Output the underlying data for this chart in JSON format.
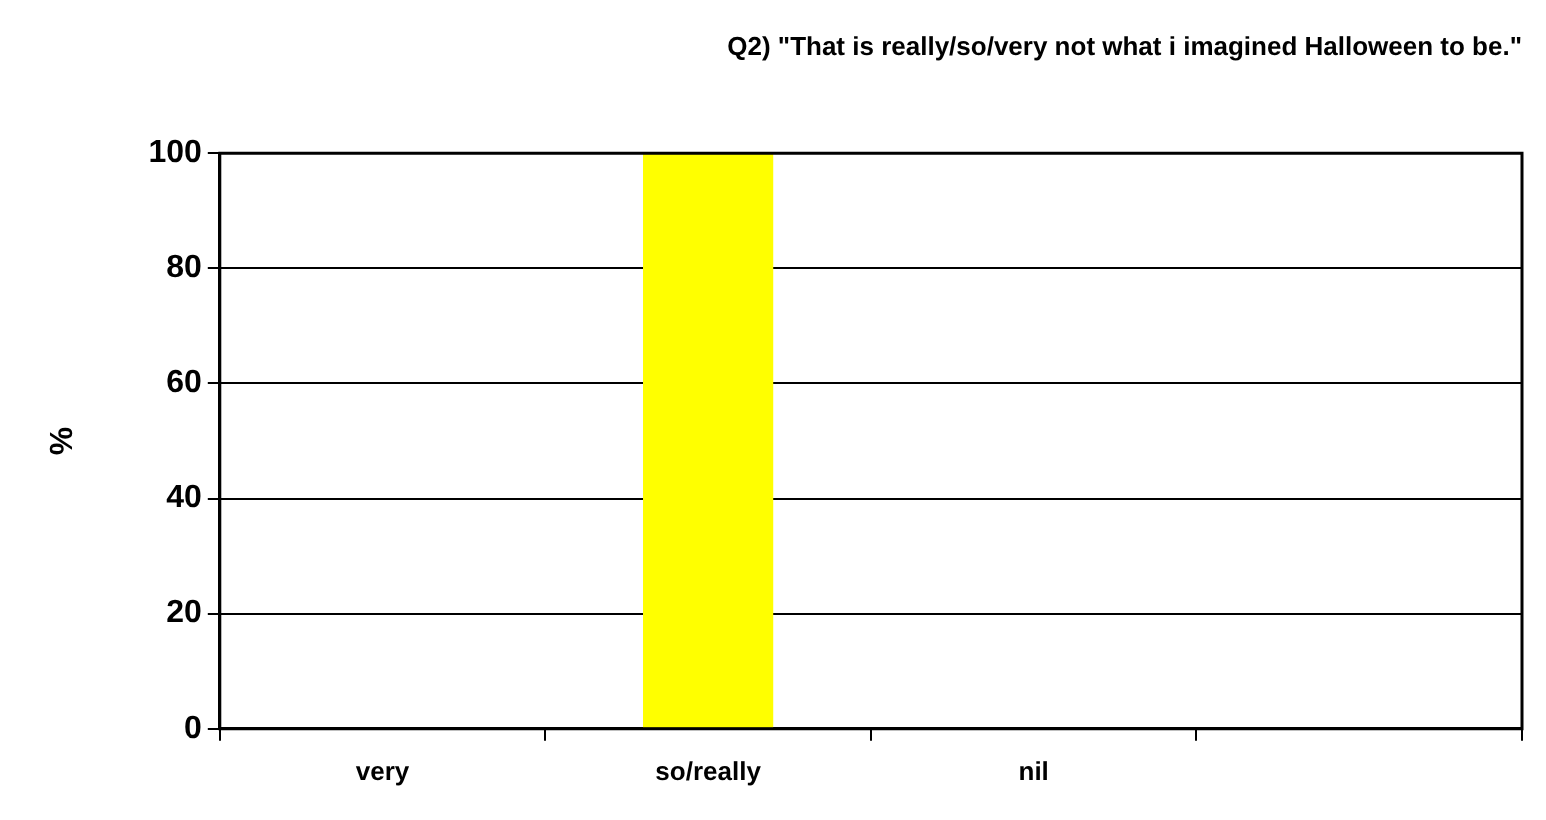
{
  "chart_data": {
    "type": "bar",
    "title": "Q2) \"That is really/so/very not what i imagined Halloween to be.\"",
    "ylabel": "%",
    "categories": [
      "very",
      "so/really",
      "nil",
      null
    ],
    "values": [
      0,
      100,
      0,
      null
    ],
    "color": "#ffff00",
    "ylim": [
      0,
      100
    ],
    "yticks": [
      0,
      20,
      40,
      60,
      80,
      100
    ],
    "grid": "y",
    "legend": false
  }
}
